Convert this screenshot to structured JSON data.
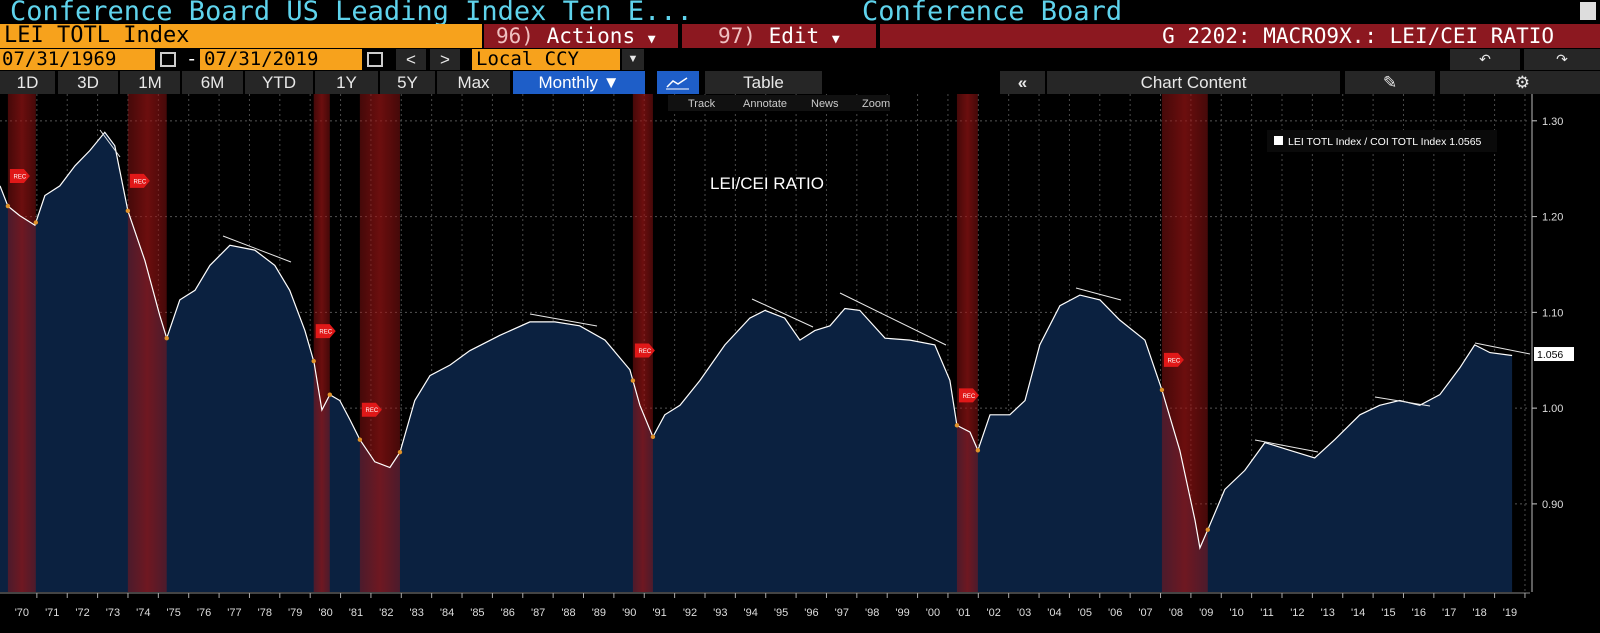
{
  "header": {
    "title": "Conference Board US Leading Index Ten E...",
    "source": "Conference Board"
  },
  "toolbar1": {
    "ticker": "LEI TOTL Index",
    "actions_num": "96)",
    "actions": "Actions",
    "edit_num": "97)",
    "edit": "Edit",
    "function": "G 2202: MACRO9X.: LEI/CEI RATIO"
  },
  "toolbar2": {
    "start_date": "07/31/1969",
    "separator": "-",
    "end_date": "07/31/2019",
    "prev": "<",
    "next": ">",
    "currency": "Local CCY"
  },
  "toolbar3": {
    "periods": [
      "1D",
      "3D",
      "1M",
      "6M",
      "YTD",
      "1Y",
      "5Y",
      "Max"
    ],
    "frequency": "Monthly",
    "table": "Table",
    "chart_content": "Chart Content"
  },
  "chart_tools": [
    "Track",
    "Annotate",
    "News",
    "Zoom"
  ],
  "chart_data": {
    "type": "area",
    "title": "LEI/CEI RATIO",
    "x": [
      1969.28,
      1969.54,
      1969.93,
      1970.43,
      1970.76,
      1971.25,
      1971.75,
      1972.24,
      1972.73,
      1973.06,
      1973.49,
      1974.05,
      1974.54,
      1974.77,
      1975.2,
      1975.7,
      1976.19,
      1976.85,
      1977.67,
      1978.33,
      1978.82,
      1979.32,
      1979.62,
      1979.88,
      1980.14,
      1980.47,
      1980.8,
      1981.13,
      1981.62,
      1982.12,
      1982.45,
      1982.94,
      1983.44,
      1984.1,
      1984.75,
      1985.74,
      1986.73,
      1987.55,
      1988.37,
      1989.2,
      1990.02,
      1990.35,
      1990.78,
      1991.17,
      1991.67,
      1992.33,
      1993.15,
      1993.97,
      1994.47,
      1995.12,
      1995.62,
      1996.11,
      1996.61,
      1997.1,
      1997.59,
      1998.42,
      1999.24,
      2000.06,
      2000.56,
      2000.79,
      2001.22,
      2001.48,
      2001.88,
      2002.53,
      2003.03,
      2003.52,
      2004.18,
      2004.84,
      2005.5,
      2006.15,
      2006.98,
      2007.54,
      2008.13,
      2008.63,
      2008.79,
      2009.05,
      2009.61,
      2010.27,
      2010.93,
      2011.75,
      2012.57,
      2013.23,
      2014.06,
      2014.71,
      2015.37,
      2016.03,
      2016.69,
      2017.35,
      2017.84,
      2018.34,
      2019.07
    ],
    "series": [
      {
        "name": "LEI TOTL Index / COI TOTL Index",
        "color": "#ffffff",
        "fill": "#0b2140",
        "last_value": 1.0565,
        "value_tag": "1.056",
        "values": [
          1.232,
          1.211,
          1.201,
          1.191,
          1.222,
          1.232,
          1.253,
          1.269,
          1.288,
          1.274,
          1.206,
          1.154,
          1.097,
          1.073,
          1.113,
          1.123,
          1.149,
          1.17,
          1.165,
          1.149,
          1.123,
          1.081,
          1.048,
          0.998,
          1.014,
          1.008,
          0.988,
          0.967,
          0.944,
          0.938,
          0.954,
          1.008,
          1.034,
          1.045,
          1.06,
          1.076,
          1.09,
          1.09,
          1.086,
          1.071,
          1.04,
          1.003,
          0.97,
          0.993,
          1.003,
          1.029,
          1.066,
          1.094,
          1.102,
          1.094,
          1.071,
          1.081,
          1.086,
          1.104,
          1.102,
          1.073,
          1.071,
          1.066,
          1.029,
          0.982,
          0.975,
          0.956,
          0.993,
          0.993,
          1.008,
          1.066,
          1.107,
          1.118,
          1.113,
          1.092,
          1.071,
          1.019,
          0.956,
          0.883,
          0.854,
          0.873,
          0.915,
          0.935,
          0.964,
          0.956,
          0.948,
          0.967,
          0.993,
          1.003,
          1.008,
          1.003,
          1.014,
          1.042,
          1.066,
          1.058,
          1.055
        ]
      }
    ],
    "recessions": [
      [
        1969.54,
        1970.46
      ],
      [
        1973.49,
        1974.77
      ],
      [
        1979.61,
        1980.14
      ],
      [
        1981.13,
        1982.45
      ],
      [
        1990.12,
        1990.78
      ],
      [
        2000.79,
        2001.48
      ],
      [
        2007.54,
        2009.05
      ]
    ],
    "recession_label": "REC",
    "recession_color": "#9a1414",
    "xlim": [
      1969.28,
      2019.66
    ],
    "ylim": [
      0.808,
      1.328
    ],
    "yticks": [
      {
        "value": 0.9,
        "label": "0.90"
      },
      {
        "value": 1.0,
        "label": "1.00"
      },
      {
        "value": 1.1,
        "label": "1.10"
      },
      {
        "value": 1.2,
        "label": "1.20"
      },
      {
        "value": 1.3,
        "label": "1.30"
      }
    ],
    "xticks": [
      {
        "value": 1970,
        "label": "'70"
      },
      {
        "value": 1971,
        "label": "'71"
      },
      {
        "value": 1972,
        "label": "'72"
      },
      {
        "value": 1973,
        "label": "'73"
      },
      {
        "value": 1974,
        "label": "'74"
      },
      {
        "value": 1975,
        "label": "'75"
      },
      {
        "value": 1976,
        "label": "'76"
      },
      {
        "value": 1977,
        "label": "'77"
      },
      {
        "value": 1978,
        "label": "'78"
      },
      {
        "value": 1979,
        "label": "'79"
      },
      {
        "value": 1980,
        "label": "'80"
      },
      {
        "value": 1981,
        "label": "'81"
      },
      {
        "value": 1982,
        "label": "'82"
      },
      {
        "value": 1983,
        "label": "'83"
      },
      {
        "value": 1984,
        "label": "'84"
      },
      {
        "value": 1985,
        "label": "'85"
      },
      {
        "value": 1986,
        "label": "'86"
      },
      {
        "value": 1987,
        "label": "'87"
      },
      {
        "value": 1988,
        "label": "'88"
      },
      {
        "value": 1989,
        "label": "'89"
      },
      {
        "value": 1990,
        "label": "'90"
      },
      {
        "value": 1991,
        "label": "'91"
      },
      {
        "value": 1992,
        "label": "'92"
      },
      {
        "value": 1993,
        "label": "'93"
      },
      {
        "value": 1994,
        "label": "'94"
      },
      {
        "value": 1995,
        "label": "'95"
      },
      {
        "value": 1996,
        "label": "'96"
      },
      {
        "value": 1997,
        "label": "'97"
      },
      {
        "value": 1998,
        "label": "'98"
      },
      {
        "value": 1999,
        "label": "'99"
      },
      {
        "value": 2000,
        "label": "'00"
      },
      {
        "value": 2001,
        "label": "'01"
      },
      {
        "value": 2002,
        "label": "'02"
      },
      {
        "value": 2003,
        "label": "'03"
      },
      {
        "value": 2004,
        "label": "'04"
      },
      {
        "value": 2005,
        "label": "'05"
      },
      {
        "value": 2006,
        "label": "'06"
      },
      {
        "value": 2007,
        "label": "'07"
      },
      {
        "value": 2008,
        "label": "'08"
      },
      {
        "value": 2009,
        "label": "'09"
      },
      {
        "value": 2010,
        "label": "'10"
      },
      {
        "value": 2011,
        "label": "'11"
      },
      {
        "value": 2012,
        "label": "'12"
      },
      {
        "value": 2013,
        "label": "'13"
      },
      {
        "value": 2014,
        "label": "'14"
      },
      {
        "value": 2015,
        "label": "'15"
      },
      {
        "value": 2016,
        "label": "'16"
      },
      {
        "value": 2017,
        "label": "'17"
      },
      {
        "value": 2018,
        "label": "'18"
      },
      {
        "value": 2019,
        "label": "'19"
      }
    ],
    "grid": true
  }
}
